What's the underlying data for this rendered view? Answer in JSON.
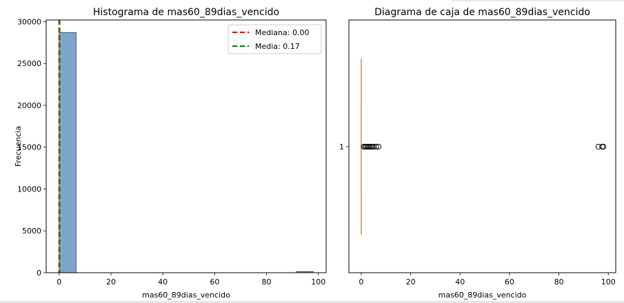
{
  "chart_data": [
    {
      "type": "bar",
      "title": "Histograma de mas60_89dias_vencido",
      "xlabel": "mas60_89dias_vencido",
      "ylabel": "Frecuencia",
      "xlim": [
        -5,
        103
      ],
      "ylim": [
        0,
        30200
      ],
      "xticks": [
        0,
        20,
        40,
        60,
        80,
        100
      ],
      "yticks": [
        0,
        5000,
        10000,
        15000,
        20000,
        25000,
        30000
      ],
      "bins": [
        {
          "x0": 0,
          "x1": 6.53,
          "count": 28700
        },
        {
          "x0": 6.53,
          "x1": 13.07,
          "count": 0
        },
        {
          "x0": 13.07,
          "x1": 19.6,
          "count": 0
        },
        {
          "x0": 19.6,
          "x1": 26.13,
          "count": 0
        },
        {
          "x0": 26.13,
          "x1": 32.67,
          "count": 0
        },
        {
          "x0": 32.67,
          "x1": 39.2,
          "count": 0
        },
        {
          "x0": 39.2,
          "x1": 45.73,
          "count": 0
        },
        {
          "x0": 45.73,
          "x1": 52.27,
          "count": 0
        },
        {
          "x0": 52.27,
          "x1": 58.8,
          "count": 0
        },
        {
          "x0": 58.8,
          "x1": 65.33,
          "count": 0
        },
        {
          "x0": 65.33,
          "x1": 71.87,
          "count": 0
        },
        {
          "x0": 71.87,
          "x1": 78.4,
          "count": 0
        },
        {
          "x0": 78.4,
          "x1": 84.93,
          "count": 0
        },
        {
          "x0": 84.93,
          "x1": 91.47,
          "count": 0
        },
        {
          "x0": 91.47,
          "x1": 98,
          "count": 130
        }
      ],
      "lines": [
        {
          "name": "Mediana: 0.00",
          "value": 0,
          "color": "#ff0000"
        },
        {
          "name": "Media: 0.17",
          "value": 0.17,
          "color": "#008000"
        }
      ],
      "bar_color": "#7ea6cd",
      "legend": "top-right"
    },
    {
      "type": "box",
      "title": "Diagrama de caja de mas60_89dias_vencido",
      "xlabel": "mas60_89dias_vencido",
      "xlim": [
        -5,
        103
      ],
      "xticks": [
        0,
        20,
        40,
        60,
        80,
        100
      ],
      "ytick_label": "1",
      "orientation": "horizontal",
      "box": {
        "q1": 0,
        "median": 0,
        "q3": 0,
        "whisker_low": 0,
        "whisker_high": 0
      },
      "outliers": [
        1,
        1.5,
        2,
        2.5,
        3,
        3.5,
        4,
        4.5,
        5,
        6,
        7,
        96,
        97.5,
        98
      ],
      "median_color": "#e08a38"
    }
  ]
}
